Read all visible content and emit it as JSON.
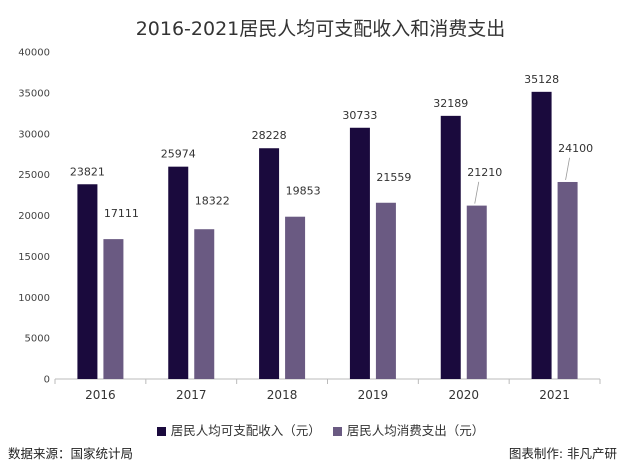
{
  "chart_data": {
    "type": "bar",
    "title": "2016-2021居民人均可支配收入和消费支出",
    "categories": [
      "2016",
      "2017",
      "2018",
      "2019",
      "2020",
      "2021"
    ],
    "series": [
      {
        "name": "居民人均可支配收入（元）",
        "color": "#1a0a3d",
        "values": [
          23821,
          25974,
          28228,
          30733,
          32189,
          35128
        ]
      },
      {
        "name": "居民人均消费支出（元）",
        "color": "#6a5a82",
        "values": [
          17111,
          18322,
          19853,
          21559,
          21210,
          24100
        ]
      }
    ],
    "ylim": [
      0,
      40000
    ],
    "yticks": [
      0,
      5000,
      10000,
      15000,
      20000,
      25000,
      30000,
      35000,
      40000
    ],
    "grid": false,
    "legend": "bottom",
    "data_labels": true
  },
  "footer": {
    "source": "数据来源：国家统计局",
    "credit": "图表制作: 非凡产研"
  }
}
